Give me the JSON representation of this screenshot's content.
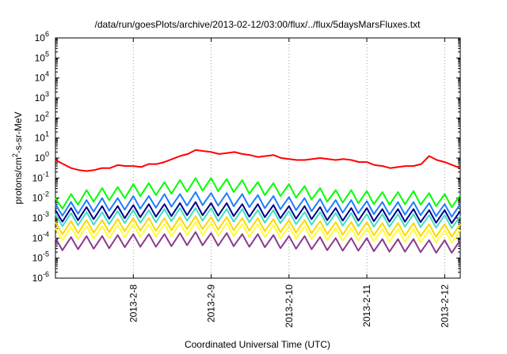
{
  "chart_data": {
    "type": "line",
    "title": "/data/run/goesPlots/archive/2013-02-12/03:00/flux/../flux/5daysMarsFluxes.txt",
    "xlabel": "Coordinated Universal Time (UTC)",
    "ylabel_main": "protons/cm",
    "ylabel_sup": "2",
    "ylabel_rest": "-s-sr-MeV",
    "yscale": "log",
    "ylim_exp": [
      -6,
      6
    ],
    "y_ticks": [
      {
        "base": "10",
        "exp": "6"
      },
      {
        "base": "10",
        "exp": "5"
      },
      {
        "base": "10",
        "exp": "4"
      },
      {
        "base": "10",
        "exp": "3"
      },
      {
        "base": "10",
        "exp": "2"
      },
      {
        "base": "10",
        "exp": "1"
      },
      {
        "base": "10",
        "exp": "0"
      },
      {
        "base": "10",
        "exp": "-1"
      },
      {
        "base": "10",
        "exp": "-2"
      },
      {
        "base": "10",
        "exp": "-3"
      },
      {
        "base": "10",
        "exp": "-4"
      },
      {
        "base": "10",
        "exp": "-5"
      },
      {
        "base": "10",
        "exp": "-6"
      }
    ],
    "xlim_days": [
      7.0,
      12.2
    ],
    "x_ticks": [
      {
        "label": "2013-2-8",
        "day": 8
      },
      {
        "label": "2013-2-9",
        "day": 9
      },
      {
        "label": "2013-2-10",
        "day": 10
      },
      {
        "label": "2013-2-11",
        "day": 11
      },
      {
        "label": "2013-2-12",
        "day": 12
      }
    ],
    "grid": {
      "vertical": true,
      "horizontal": false,
      "style": "dotted"
    },
    "series": [
      {
        "color": "#ff0000",
        "x": [
          7.0,
          7.1,
          7.2,
          7.3,
          7.4,
          7.5,
          7.6,
          7.7,
          7.8,
          7.9,
          8.0,
          8.1,
          8.2,
          8.3,
          8.4,
          8.5,
          8.6,
          8.7,
          8.8,
          8.9,
          9.0,
          9.1,
          9.2,
          9.3,
          9.4,
          9.5,
          9.6,
          9.7,
          9.8,
          9.9,
          10.0,
          10.1,
          10.2,
          10.3,
          10.4,
          10.5,
          10.6,
          10.7,
          10.8,
          10.9,
          11.0,
          11.1,
          11.2,
          11.3,
          11.4,
          11.5,
          11.6,
          11.7,
          11.8,
          11.9,
          12.0,
          12.1,
          12.2
        ],
        "log10": [
          -0.1,
          -0.3,
          -0.5,
          -0.6,
          -0.65,
          -0.6,
          -0.5,
          -0.5,
          -0.35,
          -0.4,
          -0.4,
          -0.45,
          -0.3,
          -0.3,
          -0.2,
          -0.05,
          0.1,
          0.2,
          0.4,
          0.35,
          0.3,
          0.2,
          0.25,
          0.3,
          0.2,
          0.15,
          0.05,
          0.1,
          0.15,
          0.0,
          -0.05,
          -0.1,
          -0.1,
          -0.05,
          0.0,
          -0.05,
          -0.1,
          -0.05,
          -0.1,
          -0.2,
          -0.2,
          -0.35,
          -0.4,
          -0.5,
          -0.45,
          -0.4,
          -0.4,
          -0.3,
          0.1,
          -0.1,
          -0.2,
          -0.35,
          -0.5
        ]
      },
      {
        "color": "#00ff00",
        "x": [
          7.0,
          7.2,
          7.4,
          7.6,
          7.8,
          8.0,
          8.2,
          8.4,
          8.6,
          8.8,
          9.0,
          9.2,
          9.4,
          9.6,
          9.8,
          10.0,
          10.2,
          10.4,
          10.6,
          10.8,
          11.0,
          11.2,
          11.4,
          11.6,
          11.8,
          12.0,
          12.2
        ],
        "log10": [
          -2.0,
          -1.8,
          -1.6,
          -1.5,
          -1.45,
          -1.3,
          -1.25,
          -1.2,
          -1.1,
          -1.0,
          -1.0,
          -1.05,
          -1.1,
          -1.2,
          -1.25,
          -1.3,
          -1.4,
          -1.5,
          -1.6,
          -1.6,
          -1.65,
          -1.7,
          -1.7,
          -1.65,
          -1.75,
          -1.8,
          -1.85
        ]
      },
      {
        "color": "#1e7dff",
        "x": [
          7.0,
          7.2,
          7.4,
          7.6,
          7.8,
          8.0,
          8.2,
          8.4,
          8.6,
          8.8,
          9.0,
          9.2,
          9.4,
          9.6,
          9.8,
          10.0,
          10.2,
          10.4,
          10.6,
          10.8,
          11.0,
          11.2,
          11.4,
          11.6,
          11.8,
          12.0,
          12.2
        ],
        "log10": [
          -2.3,
          -2.2,
          -2.1,
          -2.0,
          -2.0,
          -1.9,
          -1.9,
          -1.8,
          -1.8,
          -1.7,
          -1.75,
          -1.75,
          -1.8,
          -1.85,
          -1.9,
          -1.95,
          -2.0,
          -2.05,
          -2.1,
          -2.1,
          -2.15,
          -2.2,
          -2.2,
          -2.2,
          -2.25,
          -2.3,
          -2.3
        ]
      },
      {
        "color": "#00008b",
        "x": [
          7.0,
          7.2,
          7.4,
          7.6,
          7.8,
          8.0,
          8.2,
          8.4,
          8.6,
          8.8,
          9.0,
          9.2,
          9.4,
          9.6,
          9.8,
          10.0,
          10.2,
          10.4,
          10.6,
          10.8,
          11.0,
          11.2,
          11.4,
          11.6,
          11.8,
          12.0,
          12.2
        ],
        "log10": [
          -2.6,
          -2.5,
          -2.45,
          -2.4,
          -2.4,
          -2.35,
          -2.3,
          -2.3,
          -2.25,
          -2.2,
          -2.25,
          -2.25,
          -2.3,
          -2.3,
          -2.35,
          -2.4,
          -2.4,
          -2.45,
          -2.5,
          -2.5,
          -2.5,
          -2.55,
          -2.55,
          -2.55,
          -2.6,
          -2.6,
          -2.65
        ]
      },
      {
        "color": "#40e0c0",
        "x": [
          7.0,
          7.2,
          7.4,
          7.6,
          7.8,
          8.0,
          8.2,
          8.4,
          8.6,
          8.8,
          9.0,
          9.2,
          9.4,
          9.6,
          9.8,
          10.0,
          10.2,
          10.4,
          10.6,
          10.8,
          11.0,
          11.2,
          11.4,
          11.6,
          11.8,
          12.0,
          12.2
        ],
        "log10": [
          -2.8,
          -2.75,
          -2.7,
          -2.7,
          -2.65,
          -2.6,
          -2.6,
          -2.55,
          -2.5,
          -2.5,
          -2.5,
          -2.55,
          -2.55,
          -2.6,
          -2.6,
          -2.65,
          -2.7,
          -2.7,
          -2.75,
          -2.75,
          -2.8,
          -2.8,
          -2.8,
          -2.8,
          -2.85,
          -2.85,
          -2.9
        ]
      },
      {
        "color": "#ffd700",
        "x": [
          7.0,
          7.2,
          7.4,
          7.6,
          7.8,
          8.0,
          8.2,
          8.4,
          8.6,
          8.8,
          9.0,
          9.2,
          9.4,
          9.6,
          9.8,
          10.0,
          10.2,
          10.4,
          10.6,
          10.8,
          11.0,
          11.2,
          11.4,
          11.6,
          11.8,
          12.0,
          12.2
        ],
        "log10": [
          -3.2,
          -3.15,
          -3.1,
          -3.1,
          -3.05,
          -3.0,
          -3.0,
          -3.0,
          -2.95,
          -2.9,
          -2.95,
          -2.95,
          -3.0,
          -3.0,
          -3.05,
          -3.1,
          -3.1,
          -3.15,
          -3.2,
          -3.2,
          -3.2,
          -3.25,
          -3.25,
          -3.25,
          -3.3,
          -3.3,
          -3.3
        ]
      },
      {
        "color": "#ffff33",
        "x": [
          7.0,
          7.2,
          7.4,
          7.6,
          7.8,
          8.0,
          8.2,
          8.4,
          8.6,
          8.8,
          9.0,
          9.2,
          9.4,
          9.6,
          9.8,
          10.0,
          10.2,
          10.4,
          10.6,
          10.8,
          11.0,
          11.2,
          11.4,
          11.6,
          11.8,
          12.0,
          12.2
        ],
        "log10": [
          -3.5,
          -3.45,
          -3.4,
          -3.4,
          -3.35,
          -3.3,
          -3.3,
          -3.3,
          -3.25,
          -3.2,
          -3.25,
          -3.25,
          -3.3,
          -3.3,
          -3.35,
          -3.4,
          -3.4,
          -3.45,
          -3.5,
          -3.5,
          -3.5,
          -3.55,
          -3.55,
          -3.55,
          -3.6,
          -3.6,
          -3.6
        ]
      },
      {
        "color": "#8b3a8b",
        "x": [
          7.0,
          7.2,
          7.4,
          7.6,
          7.8,
          8.0,
          8.2,
          8.4,
          8.6,
          8.8,
          9.0,
          9.2,
          9.4,
          9.6,
          9.8,
          10.0,
          10.2,
          10.4,
          10.6,
          10.8,
          11.0,
          11.2,
          11.4,
          11.6,
          11.8,
          12.0,
          12.2
        ],
        "log10": [
          -4.0,
          -3.95,
          -3.9,
          -3.9,
          -3.85,
          -3.8,
          -3.8,
          -3.8,
          -3.75,
          -3.7,
          -3.75,
          -3.75,
          -3.8,
          -3.8,
          -3.85,
          -3.9,
          -3.9,
          -3.95,
          -4.0,
          -4.0,
          -4.0,
          -4.05,
          -4.05,
          -4.05,
          -4.1,
          -4.1,
          -4.1
        ]
      }
    ]
  }
}
